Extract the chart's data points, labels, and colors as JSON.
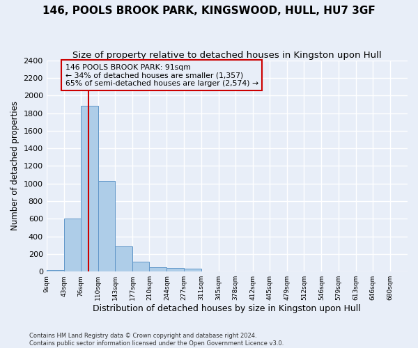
{
  "title": "146, POOLS BROOK PARK, KINGSWOOD, HULL, HU7 3GF",
  "subtitle": "Size of property relative to detached houses in Kingston upon Hull",
  "xlabel": "Distribution of detached houses by size in Kingston upon Hull",
  "ylabel": "Number of detached properties",
  "footer_line1": "Contains HM Land Registry data © Crown copyright and database right 2024.",
  "footer_line2": "Contains public sector information licensed under the Open Government Licence v3.0.",
  "bin_labels": [
    "9sqm",
    "43sqm",
    "76sqm",
    "110sqm",
    "143sqm",
    "177sqm",
    "210sqm",
    "244sqm",
    "277sqm",
    "311sqm",
    "345sqm",
    "378sqm",
    "412sqm",
    "445sqm",
    "479sqm",
    "512sqm",
    "546sqm",
    "579sqm",
    "613sqm",
    "646sqm",
    "680sqm"
  ],
  "bin_edges": [
    9,
    43,
    76,
    110,
    143,
    177,
    210,
    244,
    277,
    311,
    345,
    378,
    412,
    445,
    479,
    512,
    546,
    579,
    613,
    646,
    680
  ],
  "bar_heights": [
    20,
    600,
    1880,
    1030,
    285,
    115,
    50,
    40,
    30,
    0,
    0,
    0,
    0,
    0,
    0,
    0,
    0,
    0,
    0,
    0
  ],
  "bar_color": "#aecde8",
  "bar_edge_color": "#6096c8",
  "property_size": 91,
  "vline_color": "#cc0000",
  "annotation_text": "146 POOLS BROOK PARK: 91sqm\n← 34% of detached houses are smaller (1,357)\n65% of semi-detached houses are larger (2,574) →",
  "annotation_box_color": "#cc0000",
  "ylim": [
    0,
    2400
  ],
  "yticks": [
    0,
    200,
    400,
    600,
    800,
    1000,
    1200,
    1400,
    1600,
    1800,
    2000,
    2200,
    2400
  ],
  "background_color": "#e8eef8",
  "grid_color": "#ffffff",
  "title_fontsize": 11,
  "subtitle_fontsize": 9.5,
  "ylabel_fontsize": 8.5,
  "xlabel_fontsize": 9
}
